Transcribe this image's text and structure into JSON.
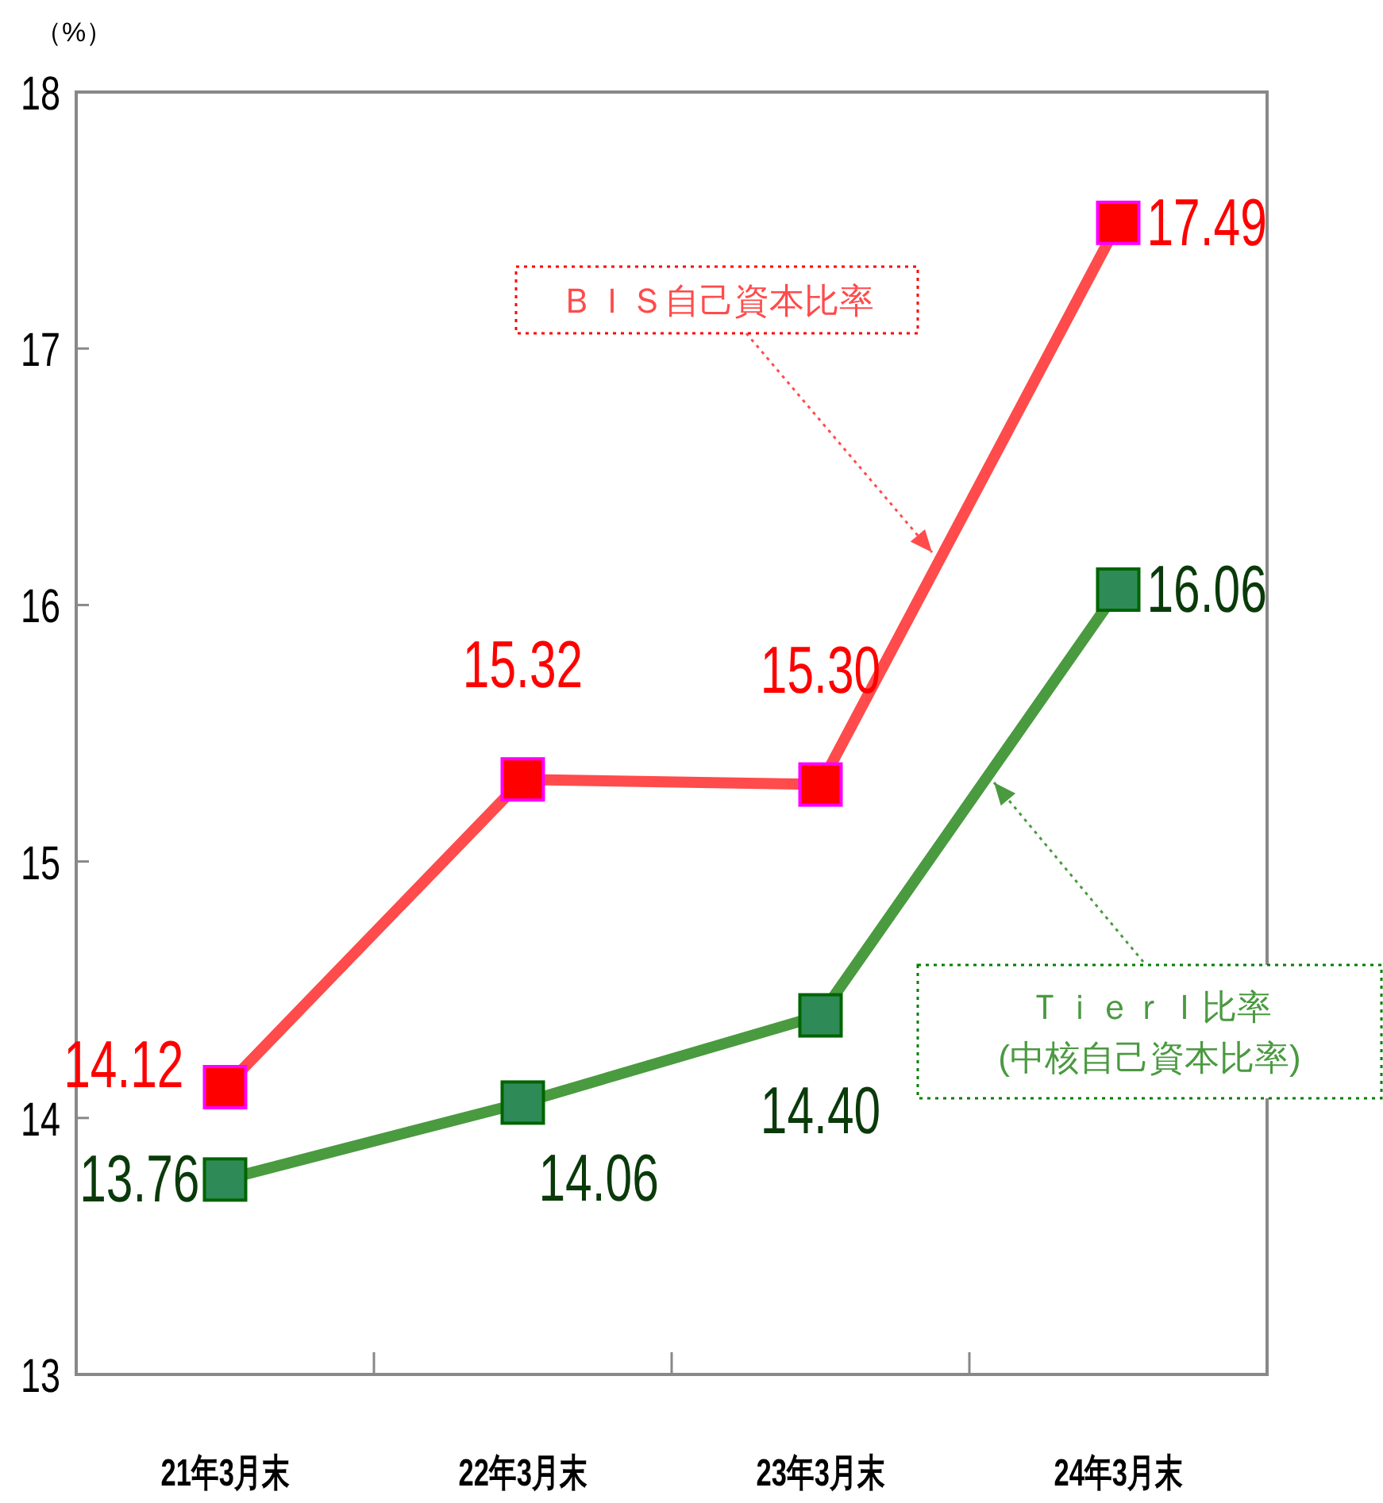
{
  "chart_data": {
    "type": "line",
    "ylabel": "（%）",
    "categories": [
      "21年3月末",
      "22年3月末",
      "23年3月末",
      "24年3月末"
    ],
    "series": [
      {
        "name": "ＢＩＳ自己資本比率",
        "color": "#ff4b4b",
        "marker": "square",
        "values": [
          14.12,
          15.32,
          15.3,
          17.49
        ],
        "value_labels": [
          "14.12",
          "15.32",
          "15.30",
          "17.49"
        ]
      },
      {
        "name": "ＴｉｅｒＩ比率\n(中核自己資本比率)",
        "color": "#4a9a40",
        "marker": "square",
        "values": [
          13.76,
          14.06,
          14.4,
          16.06
        ],
        "value_labels": [
          "13.76",
          "14.06",
          "14.40",
          "16.06"
        ]
      }
    ],
    "ylim": [
      13,
      18
    ],
    "yticks": [
      13,
      14,
      15,
      16,
      17,
      18
    ],
    "grid": false,
    "legend": false
  }
}
